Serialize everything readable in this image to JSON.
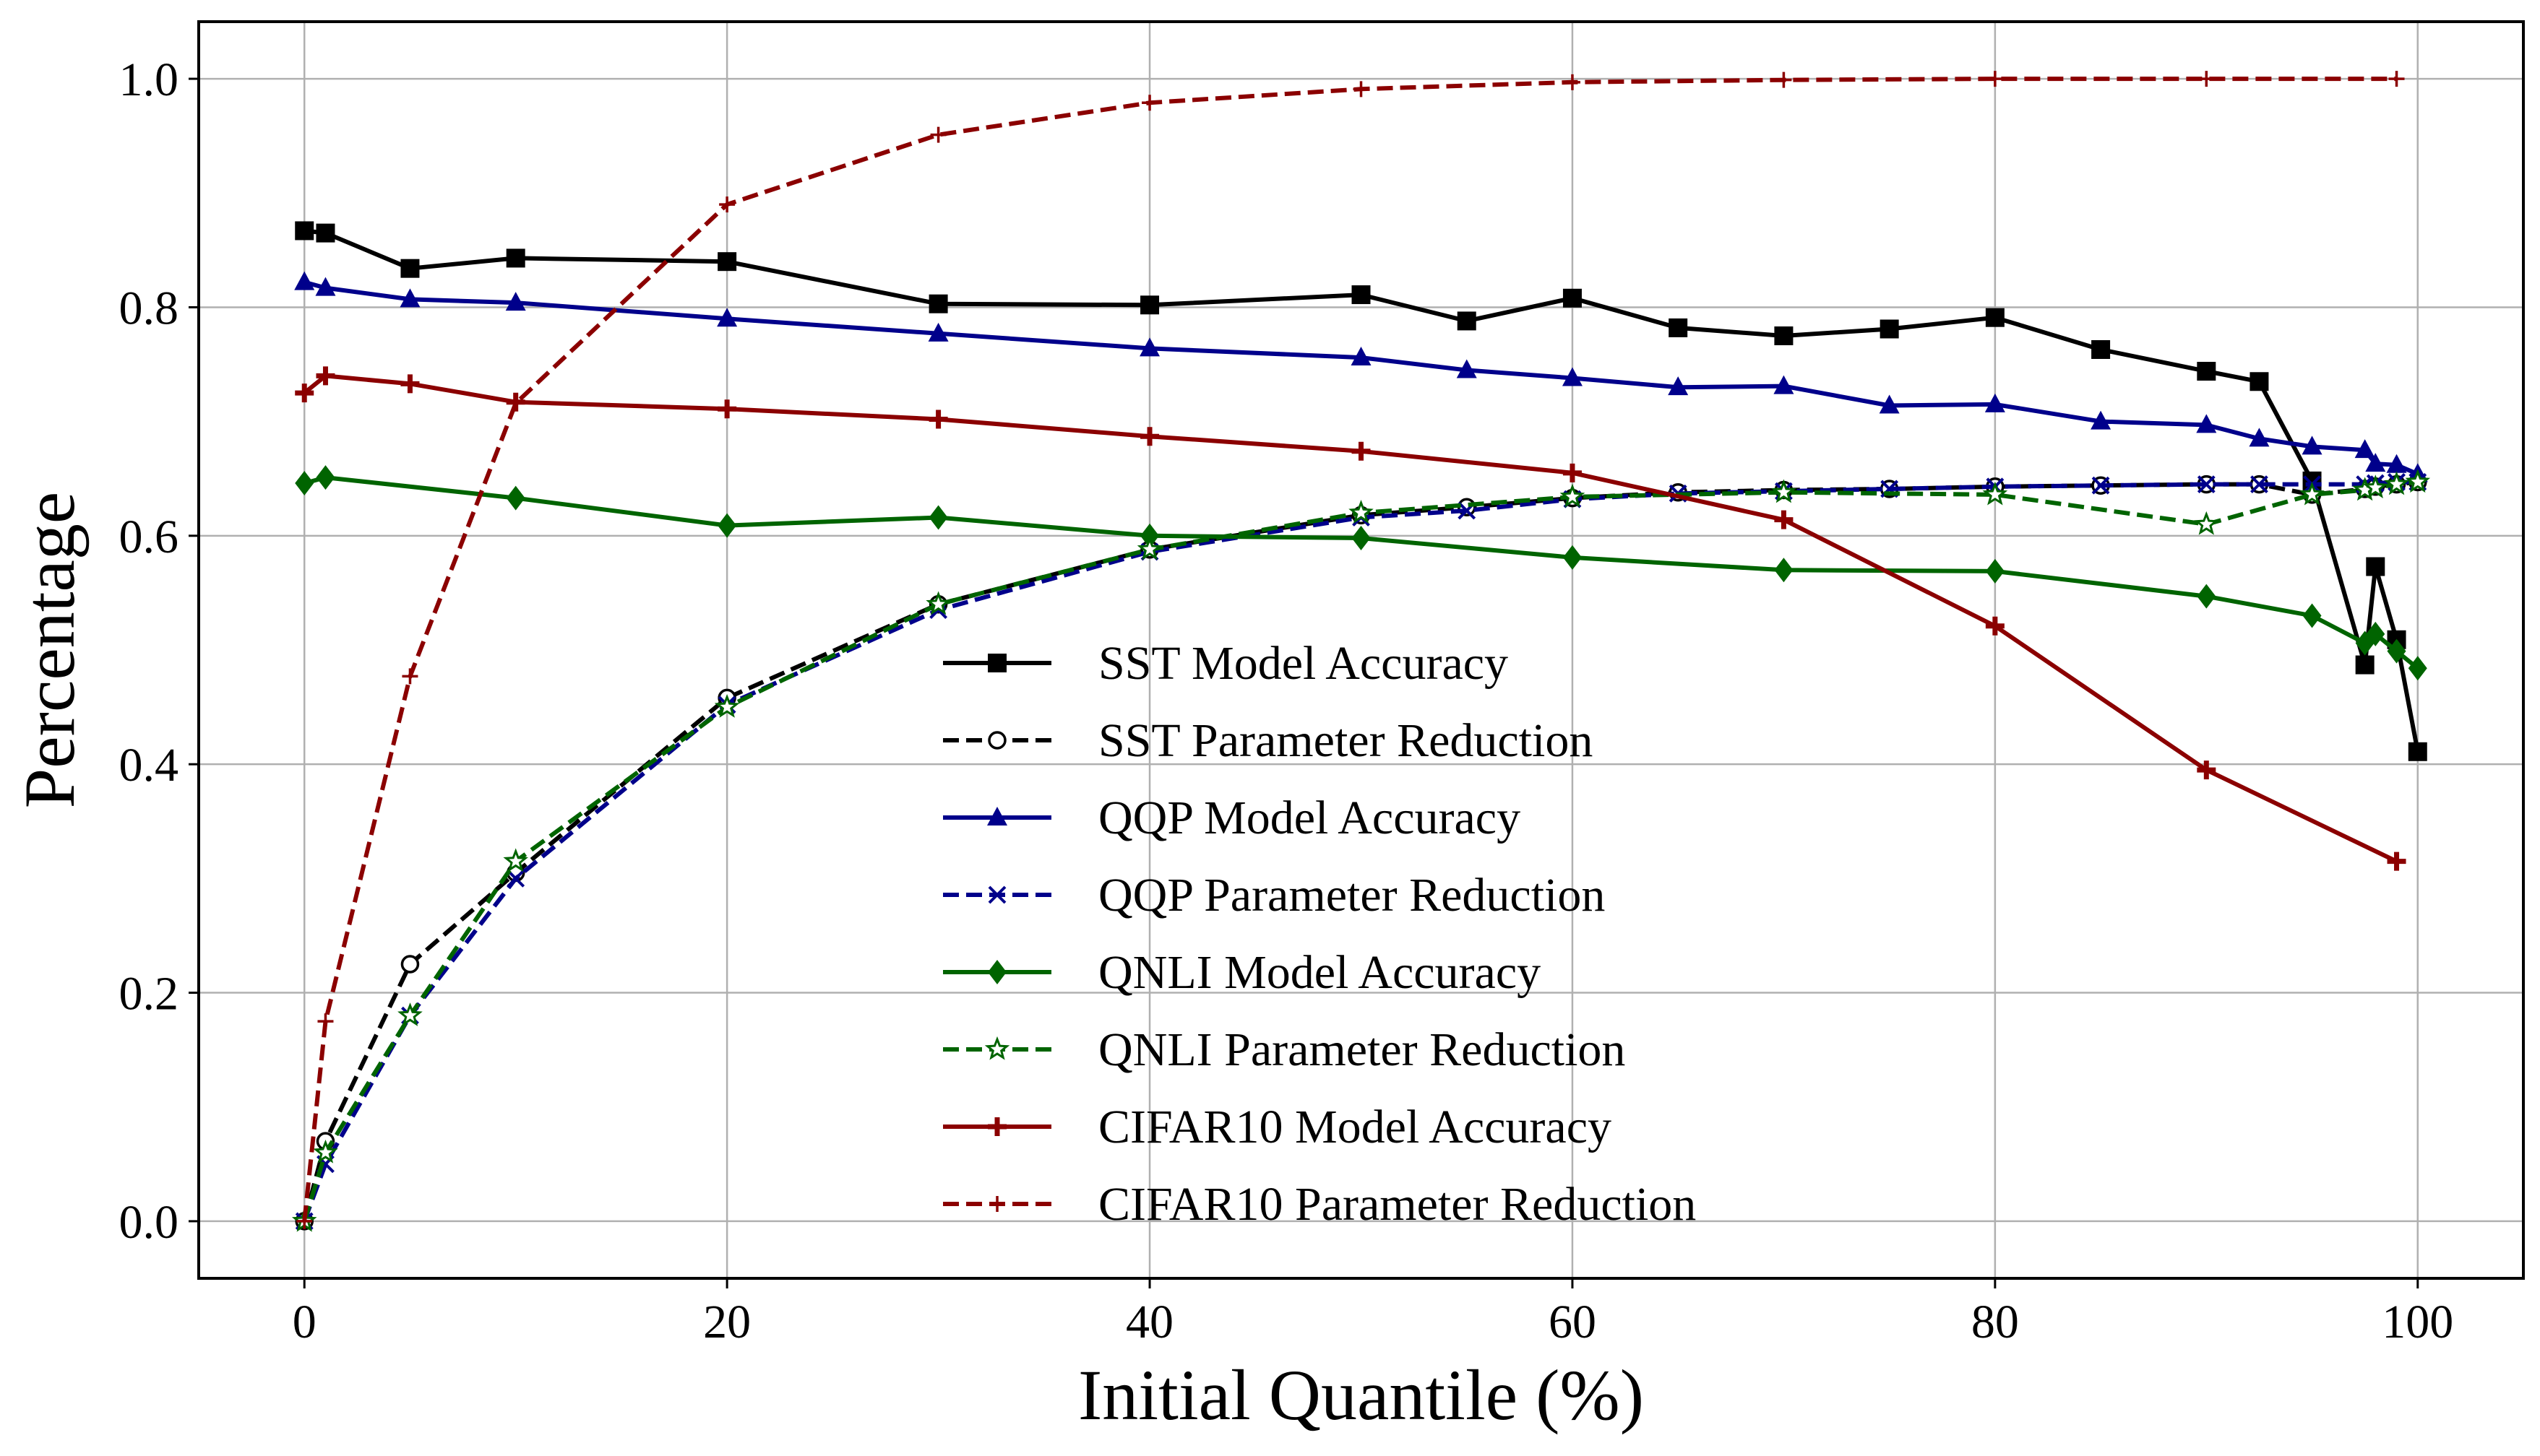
{
  "chart_data": {
    "type": "line",
    "title": "",
    "xlabel": "Initial Quantile (%)",
    "ylabel": "Percentage",
    "xlim": [
      -5,
      105
    ],
    "ylim": [
      -0.05,
      1.05
    ],
    "xticks": [
      0,
      20,
      40,
      60,
      80,
      100
    ],
    "yticks": [
      0.0,
      0.2,
      0.4,
      0.6,
      0.8,
      1.0
    ],
    "xtick_labels": [
      "0",
      "20",
      "40",
      "60",
      "80",
      "100"
    ],
    "ytick_labels": [
      "0.0",
      "0.2",
      "0.4",
      "0.6",
      "0.8",
      "1.0"
    ],
    "grid": true,
    "legend_position": "center",
    "series": [
      {
        "name": "SST Model Accuracy",
        "color": "#000000",
        "style": "solid",
        "marker": "square",
        "x": [
          0,
          1,
          5,
          10,
          20,
          30,
          40,
          50,
          55,
          60,
          65,
          70,
          75,
          80,
          85,
          90,
          92.5,
          95,
          97.5,
          98,
          99,
          100
        ],
        "y": [
          0.867,
          0.865,
          0.834,
          0.843,
          0.84,
          0.803,
          0.802,
          0.811,
          0.788,
          0.808,
          0.782,
          0.775,
          0.781,
          0.791,
          0.763,
          0.744,
          0.735,
          0.648,
          0.487,
          0.573,
          0.509,
          0.411
        ]
      },
      {
        "name": "SST Parameter Reduction",
        "color": "#000000",
        "style": "dashed",
        "marker": "circle",
        "x": [
          0,
          1,
          5,
          10,
          20,
          30,
          40,
          50,
          55,
          60,
          65,
          70,
          75,
          80,
          85,
          90,
          92.5,
          95,
          97.5,
          98,
          99,
          100
        ],
        "y": [
          0.0,
          0.07,
          0.225,
          0.305,
          0.458,
          0.54,
          0.588,
          0.618,
          0.625,
          0.633,
          0.638,
          0.64,
          0.641,
          0.643,
          0.644,
          0.645,
          0.645,
          0.636,
          0.641,
          0.643,
          0.645,
          0.647
        ]
      },
      {
        "name": "QQP Model Accuracy",
        "color": "#00008b",
        "style": "solid",
        "marker": "triangle",
        "x": [
          0,
          1,
          5,
          10,
          20,
          30,
          40,
          50,
          55,
          60,
          65,
          70,
          75,
          80,
          85,
          90,
          92.5,
          95,
          97.5,
          98,
          99,
          100
        ],
        "y": [
          0.822,
          0.817,
          0.807,
          0.804,
          0.79,
          0.777,
          0.764,
          0.756,
          0.745,
          0.738,
          0.73,
          0.731,
          0.714,
          0.715,
          0.7,
          0.697,
          0.685,
          0.678,
          0.675,
          0.663,
          0.662,
          0.654
        ]
      },
      {
        "name": "QQP Parameter Reduction",
        "color": "#00008b",
        "style": "dashed",
        "marker": "x",
        "x": [
          0,
          1,
          5,
          10,
          20,
          30,
          40,
          50,
          55,
          60,
          65,
          70,
          75,
          80,
          85,
          90,
          92.5,
          95,
          97.5,
          98,
          99,
          100
        ],
        "y": [
          0.0,
          0.05,
          0.18,
          0.3,
          0.452,
          0.535,
          0.586,
          0.616,
          0.622,
          0.632,
          0.637,
          0.639,
          0.641,
          0.643,
          0.644,
          0.645,
          0.645,
          0.645,
          0.645,
          0.646,
          0.647,
          0.647
        ]
      },
      {
        "name": "QNLI Model Accuracy",
        "color": "#006400",
        "style": "solid",
        "marker": "diamond",
        "x": [
          0,
          1,
          10,
          20,
          30,
          40,
          50,
          60,
          70,
          80,
          90,
          95,
          97.5,
          98,
          99,
          100
        ],
        "y": [
          0.646,
          0.651,
          0.633,
          0.609,
          0.616,
          0.6,
          0.598,
          0.581,
          0.57,
          0.569,
          0.547,
          0.53,
          0.506,
          0.514,
          0.499,
          0.484
        ]
      },
      {
        "name": "QNLI Parameter Reduction",
        "color": "#006400",
        "style": "dashed",
        "marker": "star",
        "x": [
          0,
          1,
          5,
          10,
          20,
          30,
          40,
          50,
          60,
          70,
          80,
          90,
          95,
          97.5,
          98,
          99,
          100
        ],
        "y": [
          0.0,
          0.06,
          0.18,
          0.315,
          0.45,
          0.54,
          0.588,
          0.62,
          0.634,
          0.638,
          0.636,
          0.61,
          0.636,
          0.64,
          0.642,
          0.645,
          0.647
        ]
      },
      {
        "name": "CIFAR10 Model Accuracy",
        "color": "#8b0000",
        "style": "solid",
        "marker": "plus",
        "x": [
          0,
          1,
          5,
          10,
          20,
          30,
          40,
          50,
          60,
          70,
          80,
          90,
          99
        ],
        "y": [
          0.725,
          0.74,
          0.733,
          0.717,
          0.711,
          0.702,
          0.687,
          0.674,
          0.655,
          0.614,
          0.521,
          0.395,
          0.315
        ]
      },
      {
        "name": "CIFAR10 Parameter Reduction",
        "color": "#8b0000",
        "style": "dashed",
        "marker": "thinplus",
        "x": [
          0,
          1,
          5,
          10,
          20,
          30,
          40,
          50,
          60,
          70,
          80,
          90,
          99
        ],
        "y": [
          0.0,
          0.175,
          0.477,
          0.716,
          0.89,
          0.951,
          0.979,
          0.991,
          0.997,
          0.999,
          1.0,
          1.0,
          1.0
        ]
      }
    ]
  }
}
